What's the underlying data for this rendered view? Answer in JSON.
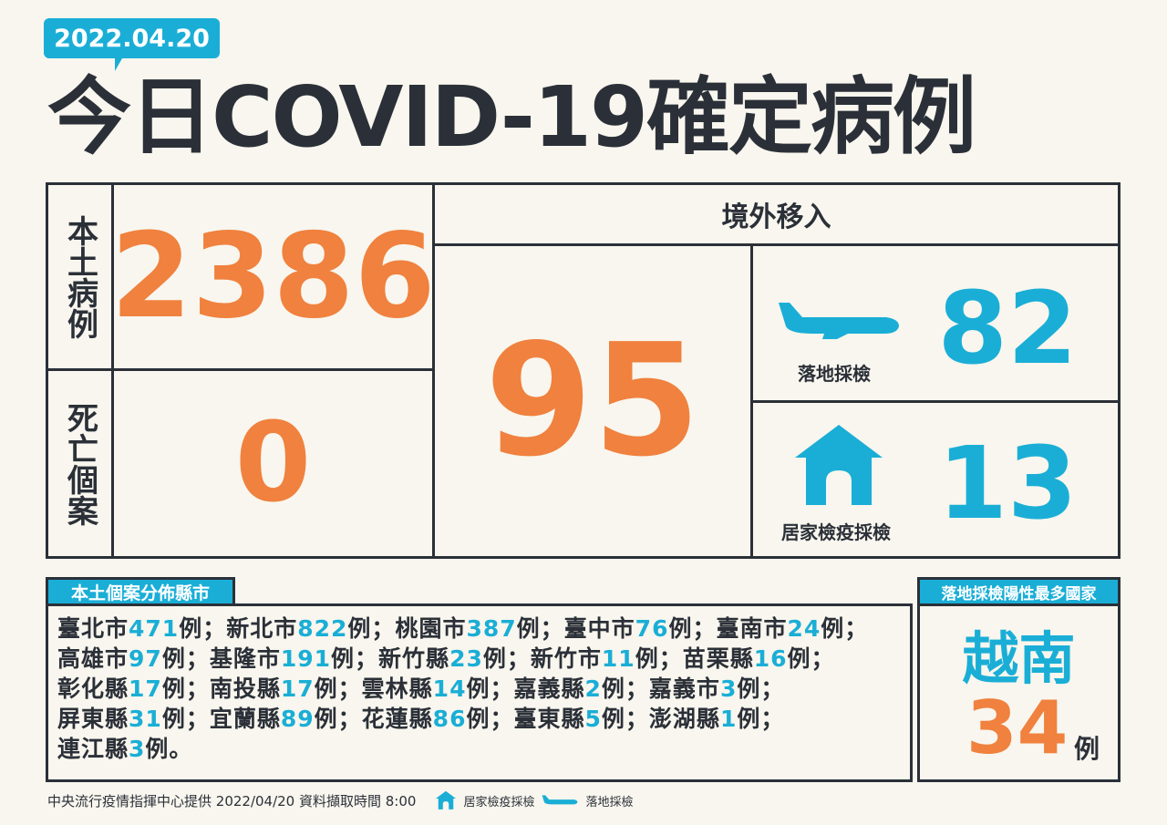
{
  "date": "2022.04.20",
  "title": "今日COVID-19確定病例",
  "local": {
    "label": "本土病例",
    "value": "2386"
  },
  "deaths": {
    "label": "死亡個案",
    "value": "0"
  },
  "imported": {
    "label": "境外移入",
    "value": "95",
    "airport": {
      "label": "落地採檢",
      "value": "82",
      "icon": "airplane-icon"
    },
    "home": {
      "label": "居家檢疫採檢",
      "value": "13",
      "icon": "house-icon"
    }
  },
  "distribution": {
    "label": "本土個案分佈縣市",
    "unit": "例",
    "sep": "；",
    "end": "。",
    "cities": [
      [
        "臺北市",
        "471"
      ],
      [
        "新北市",
        "822"
      ],
      [
        "桃園市",
        "387"
      ],
      [
        "臺中市",
        "76"
      ],
      [
        "臺南市",
        "24"
      ],
      [
        "高雄市",
        "97"
      ],
      [
        "基隆市",
        "191"
      ],
      [
        "新竹縣",
        "23"
      ],
      [
        "新竹市",
        "11"
      ],
      [
        "苗栗縣",
        "16"
      ],
      [
        "彰化縣",
        "17"
      ],
      [
        "南投縣",
        "17"
      ],
      [
        "雲林縣",
        "14"
      ],
      [
        "嘉義縣",
        "2"
      ],
      [
        "嘉義市",
        "3"
      ],
      [
        "屏東縣",
        "31"
      ],
      [
        "宜蘭縣",
        "89"
      ],
      [
        "花蓮縣",
        "86"
      ],
      [
        "臺東縣",
        "5"
      ],
      [
        "澎湖縣",
        "1"
      ],
      [
        "連江縣",
        "3"
      ]
    ]
  },
  "top_country": {
    "label": "落地採檢陽性最多國家",
    "country": "越南",
    "value": "34",
    "unit": "例"
  },
  "footer": {
    "source": "中央流行疫情指揮中心提供 2022/04/20 資料擷取時間 8:00",
    "legend_home": "居家檢疫採檢",
    "legend_air": "落地採檢"
  },
  "colors": {
    "background": "#f8f6ee",
    "text": "#2b3038",
    "orange": "#f0813e",
    "blue": "#1aaed6"
  }
}
